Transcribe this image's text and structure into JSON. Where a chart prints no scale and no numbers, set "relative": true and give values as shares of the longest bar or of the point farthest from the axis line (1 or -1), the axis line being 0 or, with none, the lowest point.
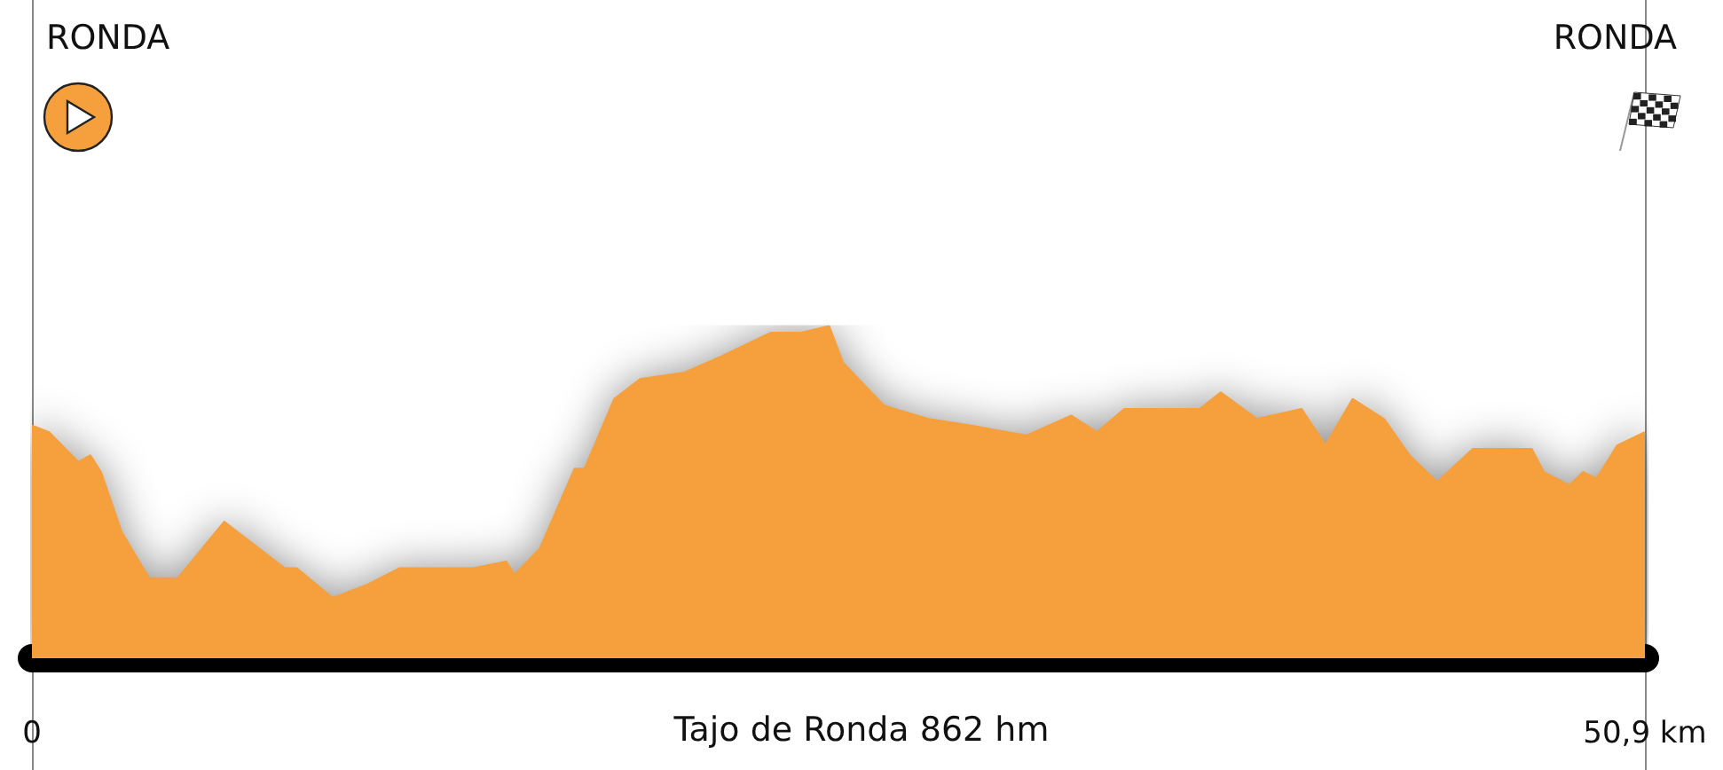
{
  "chart_data": {
    "type": "area",
    "relative": true,
    "x": [
      0,
      0.54,
      1.46,
      1.84,
      2.17,
      2.82,
      3.69,
      4.61,
      6.07,
      7.16,
      7.97,
      8.35,
      9.49,
      10.57,
      11.6,
      13.93,
      14.96,
      15.23,
      16.04,
      17.13,
      17.45,
      18.38,
      19.19,
      20.6,
      21.79,
      23.31,
      24.28,
      25.15,
      25.58,
      26.89,
      28.29,
      29.65,
      31.39,
      32.8,
      33.61,
      34.48,
      36.86,
      37.51,
      38.65,
      40.06,
      40.82,
      41.68,
      42.66,
      43.47,
      44.34,
      45.48,
      47.32,
      47.7,
      48.52,
      48.95,
      49.38,
      50.03,
      50.9
    ],
    "series": [
      {
        "color": "#f5a03c",
        "values": [
          0.7,
          0.68,
          0.59,
          0.61,
          0.56,
          0.38,
          0.24,
          0.24,
          0.41,
          0.33,
          0.27,
          0.27,
          0.18,
          0.22,
          0.27,
          0.27,
          0.29,
          0.25,
          0.33,
          0.57,
          0.57,
          0.78,
          0.84,
          0.86,
          0.91,
          0.98,
          0.98,
          1,
          0.89,
          0.76,
          0.72,
          0.7,
          0.67,
          0.73,
          0.68,
          0.75,
          0.75,
          0.8,
          0.72,
          0.75,
          0.64,
          0.78,
          0.72,
          0.61,
          0.53,
          0.63,
          0.63,
          0.56,
          0.52,
          0.56,
          0.54,
          0.64,
          0.68
        ]
      }
    ],
    "xlim": [
      0,
      50.9
    ],
    "xticks": [
      0,
      {
        "value": 50.9,
        "label": "50,9 km"
      }
    ],
    "annotations": [
      "RONDA",
      "RONDA",
      "Tajo de Ronda 862 hm"
    ],
    "grid": false,
    "marker": "none"
  }
}
